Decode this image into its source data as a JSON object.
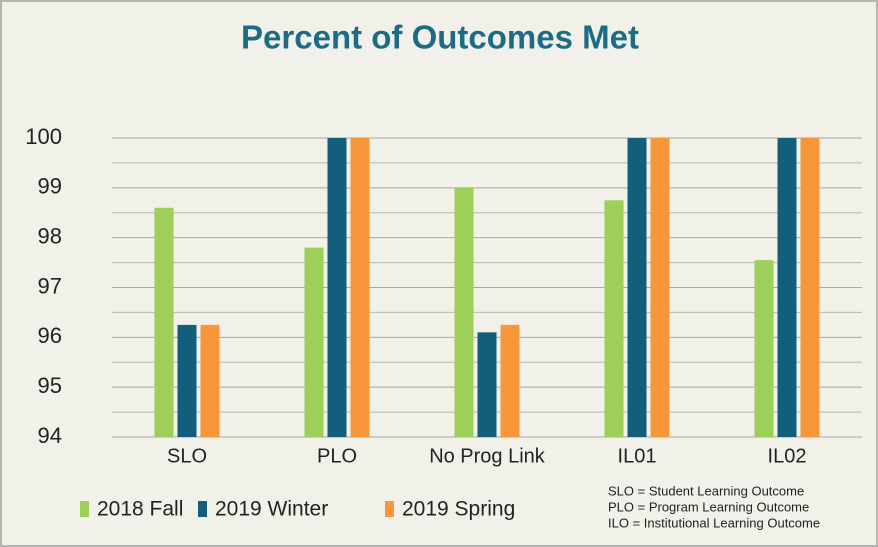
{
  "chart_data": {
    "type": "bar",
    "title": "Percent of Outcomes Met",
    "categories": [
      "SLO",
      "PLO",
      "No Prog Link",
      "IL01",
      "IL02"
    ],
    "series": [
      {
        "name": "2018 Fall",
        "color": "#9dcf5a",
        "values": [
          98.6,
          97.8,
          99.0,
          98.75,
          97.55
        ]
      },
      {
        "name": "2019 Winter",
        "color": "#135f7b",
        "values": [
          96.25,
          100,
          96.1,
          100,
          100
        ]
      },
      {
        "name": "2019 Spring",
        "color": "#f7963a",
        "values": [
          96.25,
          100,
          96.25,
          100,
          100
        ]
      }
    ],
    "ylim": [
      94,
      100
    ],
    "yticks": [
      94,
      95,
      96,
      97,
      98,
      99,
      100
    ],
    "grid": true,
    "minor_grid": true,
    "legend": "bottom-left",
    "notes": [
      "SLO = Student Learning Outcome",
      "PLO = Program Learning Outcome",
      "ILO = Institutional Learning Outcome"
    ]
  }
}
